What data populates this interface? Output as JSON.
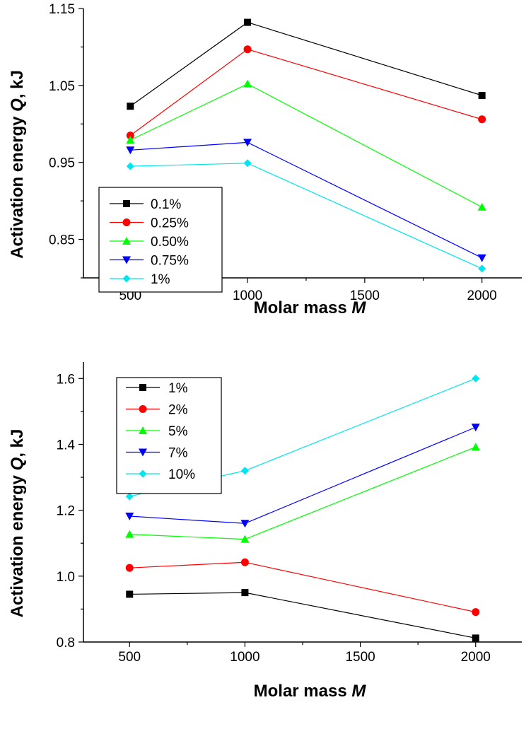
{
  "chart_data": [
    {
      "type": "line",
      "xlabel": "Molar mass",
      "xlabel_symbol": "M",
      "ylabel": "Activation energy",
      "ylabel_symbol": "Q",
      "ylabel_unit": ", kJ",
      "xlim": [
        300,
        2170
      ],
      "ylim": [
        0.8,
        1.15
      ],
      "x_ticks": [
        500,
        1000,
        1500,
        2000
      ],
      "x_tick_labels": [
        "500",
        "1000",
        "1500",
        "2000"
      ],
      "y_ticks": [
        0.85,
        0.95,
        1.05,
        1.15
      ],
      "y_tick_labels": [
        "0.85",
        "0.95",
        "1.05",
        "1.15"
      ],
      "legend_position": "bottom-left",
      "grid": false,
      "x": [
        500,
        1000,
        2000
      ],
      "series": [
        {
          "name": "0.1%",
          "color": "#000000",
          "marker": "square",
          "values": [
            1.023,
            1.132,
            1.037
          ]
        },
        {
          "name": "0.25%",
          "color": "#ff0000",
          "marker": "circle",
          "values": [
            0.985,
            1.097,
            1.006
          ]
        },
        {
          "name": "0.50%",
          "color": "#00ff00",
          "marker": "triangle-up",
          "values": [
            0.979,
            1.052,
            0.892
          ]
        },
        {
          "name": "0.75%",
          "color": "#0000ff",
          "marker": "triangle-down",
          "values": [
            0.966,
            0.976,
            0.826
          ]
        },
        {
          "name": "1%",
          "color": "#00e5ee",
          "marker": "diamond",
          "values": [
            0.945,
            0.949,
            0.812
          ]
        }
      ]
    },
    {
      "type": "line",
      "xlabel": "Molar mass",
      "xlabel_symbol": "M",
      "ylabel": "Activation energy",
      "ylabel_symbol": "Q",
      "ylabel_unit": ", kJ",
      "xlim": [
        300,
        2200
      ],
      "ylim": [
        0.8,
        1.65
      ],
      "x_ticks": [
        500,
        1000,
        1500,
        2000
      ],
      "x_tick_labels": [
        "500",
        "1000",
        "1500",
        "2000"
      ],
      "y_ticks": [
        0.8,
        1.0,
        1.2,
        1.4,
        1.6
      ],
      "y_tick_labels": [
        "0.8",
        "1.0",
        "1.2",
        "1.4",
        "1.6"
      ],
      "legend_position": "top-left",
      "grid": false,
      "x": [
        500,
        1000,
        2000
      ],
      "series": [
        {
          "name": "1%",
          "color": "#000000",
          "marker": "square",
          "values": [
            0.945,
            0.95,
            0.812
          ]
        },
        {
          "name": "2%",
          "color": "#ff0000",
          "marker": "circle",
          "values": [
            1.025,
            1.042,
            0.891
          ]
        },
        {
          "name": "5%",
          "color": "#00ff00",
          "marker": "triangle-up",
          "values": [
            1.127,
            1.112,
            1.392
          ]
        },
        {
          "name": "7%",
          "color": "#0000ff",
          "marker": "triangle-down",
          "values": [
            1.182,
            1.16,
            1.452
          ]
        },
        {
          "name": "10%",
          "color": "#00e5ee",
          "marker": "diamond",
          "values": [
            1.242,
            1.32,
            1.6
          ]
        }
      ]
    }
  ]
}
